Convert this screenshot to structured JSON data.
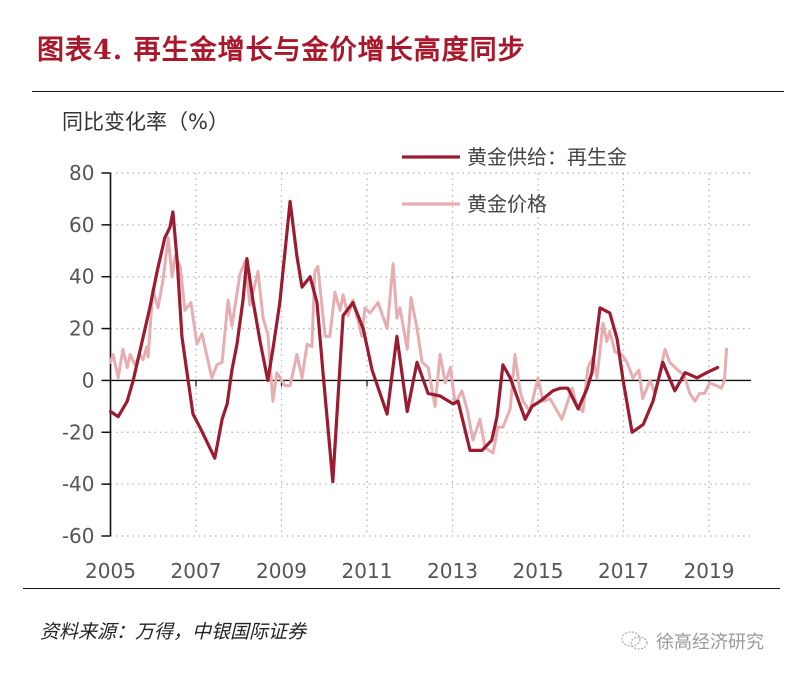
{
  "header": {
    "title": "图表4. 再生金增长与金价增长高度同步"
  },
  "footer": {
    "source": "资料来源：万得，中银国际证券",
    "watermark": "徐高经济研究",
    "watermark_icon": "wechat-icon"
  },
  "colors": {
    "title": "#a8182a",
    "recycled_gold": "#9b1b30",
    "gold_price": "#e6aeb1",
    "axis": "#111111"
  },
  "chart_data": {
    "type": "line",
    "title": "图表4. 再生金增长与金价增长高度同步",
    "xlabel": "",
    "ylabel": "同比变化率（%）",
    "xlim": [
      2005,
      2020
    ],
    "ylim": [
      -60,
      80
    ],
    "x_ticks": [
      2005,
      2007,
      2009,
      2011,
      2013,
      2015,
      2017,
      2019
    ],
    "x_tick_labels": [
      "2005",
      "2007",
      "2009",
      "2011",
      "2013",
      "2015",
      "2017",
      "2019"
    ],
    "y_ticks": [
      80,
      60,
      40,
      20,
      0,
      -20,
      -40,
      -60
    ],
    "y_tick_labels": [
      "80",
      "60",
      "40",
      "20",
      "0",
      "-20",
      "-40",
      "-60"
    ],
    "grid": "dotted",
    "legend_position": "top-right",
    "series": [
      {
        "name": "黄金供给：再生金",
        "color": "#9b1b30",
        "points": [
          [
            2005.0,
            -12
          ],
          [
            2005.18,
            -14
          ],
          [
            2005.39,
            -8
          ],
          [
            2005.53,
            0
          ],
          [
            2005.74,
            15
          ],
          [
            2005.92,
            28
          ],
          [
            2006.09,
            42
          ],
          [
            2006.27,
            55
          ],
          [
            2006.39,
            59
          ],
          [
            2006.46,
            65
          ],
          [
            2006.56,
            46
          ],
          [
            2006.67,
            17
          ],
          [
            2006.79,
            3
          ],
          [
            2006.93,
            -13
          ],
          [
            2007.09,
            -18
          ],
          [
            2007.44,
            -30
          ],
          [
            2007.61,
            -15
          ],
          [
            2007.73,
            -9
          ],
          [
            2007.84,
            4
          ],
          [
            2007.96,
            14
          ],
          [
            2008.1,
            31
          ],
          [
            2008.19,
            47
          ],
          [
            2008.33,
            31
          ],
          [
            2008.5,
            15
          ],
          [
            2008.68,
            0
          ],
          [
            2008.8,
            12
          ],
          [
            2008.96,
            30
          ],
          [
            2009.2,
            69
          ],
          [
            2009.36,
            48
          ],
          [
            2009.48,
            36
          ],
          [
            2009.67,
            40
          ],
          [
            2009.83,
            30
          ],
          [
            2009.97,
            3
          ],
          [
            2010.2,
            -39
          ],
          [
            2010.44,
            25
          ],
          [
            2010.67,
            30
          ],
          [
            2010.91,
            20
          ],
          [
            2011.12,
            4
          ],
          [
            2011.47,
            -13
          ],
          [
            2011.7,
            17
          ],
          [
            2011.94,
            -12
          ],
          [
            2012.17,
            7
          ],
          [
            2012.43,
            -5
          ],
          [
            2012.71,
            -6
          ],
          [
            2013.01,
            -9
          ],
          [
            2013.13,
            -8
          ],
          [
            2013.41,
            -27
          ],
          [
            2013.69,
            -27
          ],
          [
            2013.92,
            -23
          ],
          [
            2014.04,
            -14
          ],
          [
            2014.18,
            6
          ],
          [
            2014.35,
            1
          ],
          [
            2014.7,
            -15
          ],
          [
            2014.86,
            -10
          ],
          [
            2015.05,
            -8
          ],
          [
            2015.35,
            -4
          ],
          [
            2015.52,
            -3
          ],
          [
            2015.7,
            -3
          ],
          [
            2015.94,
            -11
          ],
          [
            2016.15,
            -3
          ],
          [
            2016.26,
            3
          ],
          [
            2016.45,
            28
          ],
          [
            2016.68,
            26
          ],
          [
            2016.85,
            16
          ],
          [
            2016.99,
            0
          ],
          [
            2017.2,
            -20
          ],
          [
            2017.46,
            -17
          ],
          [
            2017.69,
            -8
          ],
          [
            2017.92,
            7
          ],
          [
            2018.2,
            -4
          ],
          [
            2018.44,
            3
          ],
          [
            2018.72,
            1
          ],
          [
            2018.95,
            3
          ],
          [
            2019.2,
            5
          ]
        ]
      },
      {
        "name": "黄金价格",
        "color": "#e6aeb1",
        "points": [
          [
            2005.0,
            7
          ],
          [
            2005.06,
            10
          ],
          [
            2005.18,
            1
          ],
          [
            2005.29,
            12
          ],
          [
            2005.39,
            5
          ],
          [
            2005.46,
            10
          ],
          [
            2005.57,
            6
          ],
          [
            2005.69,
            10
          ],
          [
            2005.76,
            8
          ],
          [
            2005.85,
            13
          ],
          [
            2005.88,
            9
          ],
          [
            2005.99,
            35
          ],
          [
            2006.11,
            28
          ],
          [
            2006.23,
            39
          ],
          [
            2006.35,
            55
          ],
          [
            2006.44,
            40
          ],
          [
            2006.51,
            48
          ],
          [
            2006.63,
            44
          ],
          [
            2006.74,
            27
          ],
          [
            2006.88,
            30
          ],
          [
            2007.02,
            14
          ],
          [
            2007.14,
            18
          ],
          [
            2007.37,
            1
          ],
          [
            2007.49,
            6
          ],
          [
            2007.61,
            7
          ],
          [
            2007.75,
            31
          ],
          [
            2007.84,
            21
          ],
          [
            2008.03,
            41
          ],
          [
            2008.15,
            46
          ],
          [
            2008.26,
            29
          ],
          [
            2008.45,
            42
          ],
          [
            2008.57,
            24
          ],
          [
            2008.68,
            18
          ],
          [
            2008.8,
            -8
          ],
          [
            2008.89,
            3
          ],
          [
            2009.08,
            -2
          ],
          [
            2009.2,
            -2
          ],
          [
            2009.36,
            10
          ],
          [
            2009.48,
            1
          ],
          [
            2009.6,
            14
          ],
          [
            2009.71,
            13
          ],
          [
            2009.78,
            42
          ],
          [
            2009.85,
            44
          ],
          [
            2010.02,
            17
          ],
          [
            2010.13,
            17
          ],
          [
            2010.25,
            34
          ],
          [
            2010.37,
            27
          ],
          [
            2010.44,
            33
          ],
          [
            2010.56,
            25
          ],
          [
            2010.67,
            31
          ],
          [
            2010.88,
            17
          ],
          [
            2010.95,
            28
          ],
          [
            2011.07,
            26
          ],
          [
            2011.26,
            30
          ],
          [
            2011.47,
            20
          ],
          [
            2011.61,
            45
          ],
          [
            2011.7,
            24
          ],
          [
            2011.77,
            28
          ],
          [
            2011.94,
            12
          ],
          [
            2012.03,
            32
          ],
          [
            2012.17,
            20
          ],
          [
            2012.29,
            7
          ],
          [
            2012.43,
            5
          ],
          [
            2012.59,
            -10
          ],
          [
            2012.71,
            10
          ],
          [
            2012.83,
            -1
          ],
          [
            2012.95,
            5
          ],
          [
            2013.06,
            -9
          ],
          [
            2013.22,
            -4
          ],
          [
            2013.34,
            -11
          ],
          [
            2013.48,
            -23
          ],
          [
            2013.64,
            -15
          ],
          [
            2013.76,
            -26
          ],
          [
            2013.95,
            -28
          ],
          [
            2014.06,
            -18
          ],
          [
            2014.18,
            -18
          ],
          [
            2014.35,
            -11
          ],
          [
            2014.46,
            10
          ],
          [
            2014.58,
            -4
          ],
          [
            2014.65,
            -8
          ],
          [
            2014.81,
            -12
          ],
          [
            2015.0,
            1
          ],
          [
            2015.12,
            -8
          ],
          [
            2015.28,
            -7
          ],
          [
            2015.56,
            -15
          ],
          [
            2015.8,
            -3
          ],
          [
            2015.91,
            -10
          ],
          [
            2016.05,
            -12
          ],
          [
            2016.17,
            5
          ],
          [
            2016.29,
            9
          ],
          [
            2016.38,
            1
          ],
          [
            2016.52,
            22
          ],
          [
            2016.61,
            15
          ],
          [
            2016.68,
            19
          ],
          [
            2016.8,
            11
          ],
          [
            2016.96,
            10
          ],
          [
            2017.08,
            7
          ],
          [
            2017.22,
            1
          ],
          [
            2017.36,
            4
          ],
          [
            2017.45,
            -7
          ],
          [
            2017.62,
            0
          ],
          [
            2017.74,
            -5
          ],
          [
            2017.85,
            3
          ],
          [
            2017.97,
            12
          ],
          [
            2018.08,
            7
          ],
          [
            2018.27,
            4
          ],
          [
            2018.42,
            2
          ],
          [
            2018.55,
            -5
          ],
          [
            2018.67,
            -8
          ],
          [
            2018.78,
            -5
          ],
          [
            2018.9,
            -5
          ],
          [
            2019.01,
            -1
          ],
          [
            2019.18,
            -2
          ],
          [
            2019.29,
            -3
          ],
          [
            2019.36,
            0
          ],
          [
            2019.41,
            12
          ]
        ]
      }
    ]
  }
}
